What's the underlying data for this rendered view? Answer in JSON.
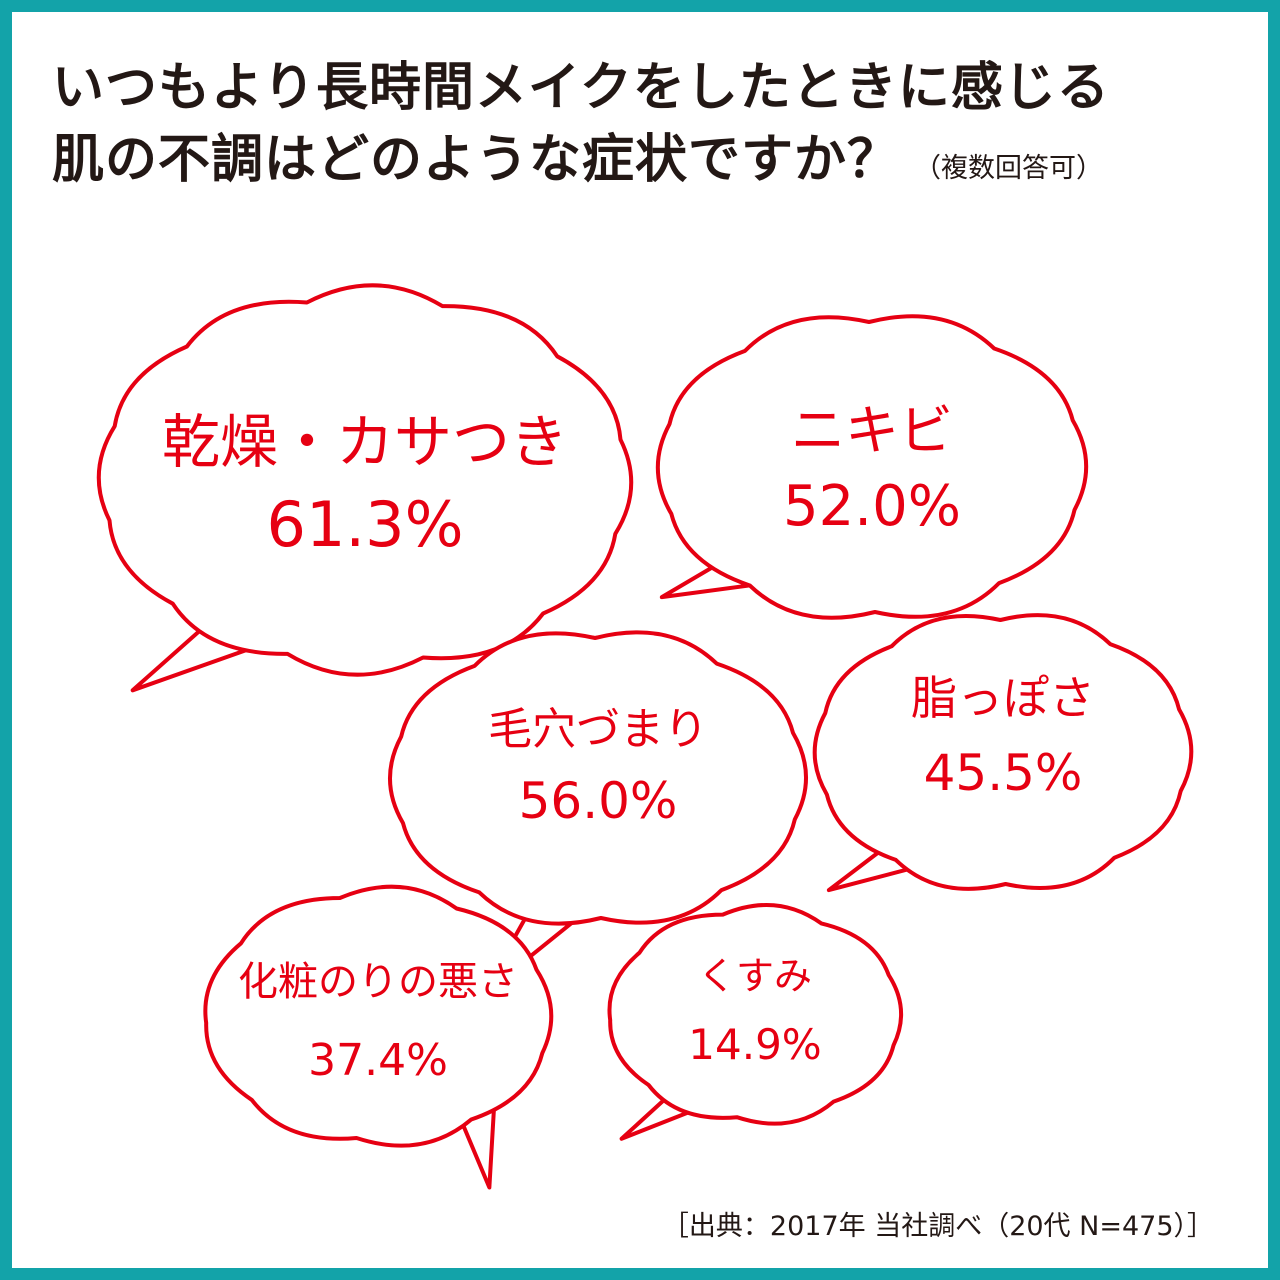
{
  "title": {
    "line1": "いつもより長時間メイクをしたときに感じる",
    "line2": "肌の不調はどのような症状ですか？",
    "note": "（複数回答可）"
  },
  "source": "［出典：2017年 当社調べ（20代 N=475）］",
  "colors": {
    "frame": "#13a3a9",
    "accent": "#e60012",
    "text": "#231815"
  },
  "chart_data": {
    "type": "bubble-callouts",
    "unit": "%",
    "categories": [
      "乾燥・カサつき",
      "ニキビ",
      "毛穴づまり",
      "脂っぽさ",
      "化粧のりの悪さ",
      "くすみ"
    ],
    "values": [
      61.3,
      52.0,
      56.0,
      45.5,
      37.4,
      14.9
    ],
    "value_labels": [
      "61.3%",
      "52.0%",
      "56.0%",
      "45.5%",
      "37.4%",
      "14.9%"
    ]
  }
}
